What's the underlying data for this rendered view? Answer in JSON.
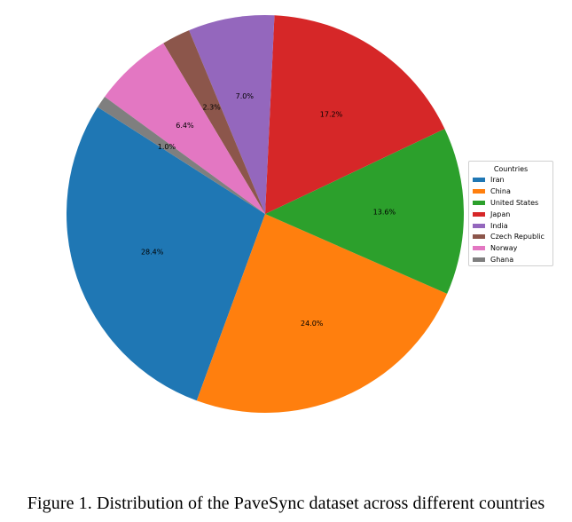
{
  "chart_data": {
    "type": "pie",
    "legend_title": "Countries",
    "legend_placement": "right",
    "start_angle_deg": 147.5,
    "direction": "counterclockwise",
    "slices": [
      {
        "label": "Iran",
        "value": 28.4,
        "pct_label": "28.4%",
        "color": "#1f77b4"
      },
      {
        "label": "China",
        "value": 24.0,
        "pct_label": "24.0%",
        "color": "#ff7f0e"
      },
      {
        "label": "United States",
        "value": 13.6,
        "pct_label": "13.6%",
        "color": "#2ca02c"
      },
      {
        "label": "Japan",
        "value": 17.2,
        "pct_label": "17.2%",
        "color": "#d62728"
      },
      {
        "label": "India",
        "value": 7.0,
        "pct_label": "7.0%",
        "color": "#9467bd"
      },
      {
        "label": "Czech Republic",
        "value": 2.3,
        "pct_label": "2.3%",
        "color": "#8c564b"
      },
      {
        "label": "Norway",
        "value": 6.4,
        "pct_label": "6.4%",
        "color": "#e377c2"
      },
      {
        "label": "Ghana",
        "value": 1.0,
        "pct_label": "1.0%",
        "color": "#7f7f7f"
      }
    ]
  },
  "caption": "Figure 1.  Distribution of the PaveSync dataset across different countries"
}
